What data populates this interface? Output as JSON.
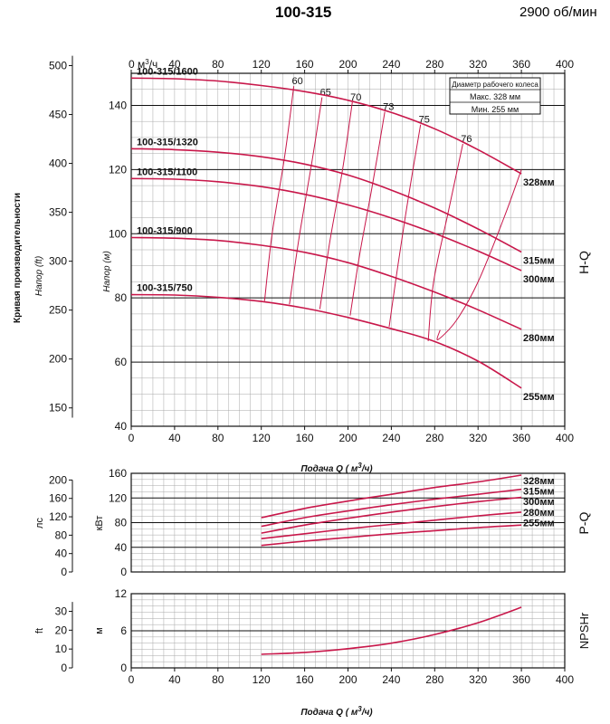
{
  "header": {
    "model": "100-315",
    "speed": "2900 об/мин"
  },
  "colors": {
    "curve": "#c8174a",
    "grid": "#a8a8a8",
    "axis": "#111111"
  },
  "chart_data": [
    {
      "id": "hq",
      "type": "line",
      "tag": "H-Q",
      "x_bottom_ticks": [
        0,
        40,
        80,
        120,
        160,
        200,
        240,
        280,
        320,
        360,
        400
      ],
      "x_top_ticks": [
        "0 м³/ч",
        "40",
        "80",
        "120",
        "160",
        "200",
        "240",
        "280",
        "320",
        "360",
        "400"
      ],
      "xlim": [
        0,
        400
      ],
      "ylim": [
        40,
        150
      ],
      "y_m_ticks": [
        40,
        60,
        80,
        100,
        120,
        140
      ],
      "y_ft_ticks": [
        150,
        200,
        250,
        300,
        350,
        400,
        450,
        500
      ],
      "ylabel_m": "Напор (м)",
      "ylabel_ft": "Напор (ft)",
      "side_label": "Кривая производительности",
      "xlabel": "Подача Q ( м³/ч)",
      "legend": {
        "title": "Диаметр рабочего колеса",
        "max": "Макс. 328 мм",
        "min": "Мин.  255 мм"
      },
      "series": [
        {
          "name": "328мм",
          "model": "100-315/1600",
          "x": [
            0,
            40,
            80,
            120,
            160,
            200,
            240,
            280,
            320,
            360
          ],
          "y": [
            148.5,
            148.3,
            147.6,
            146.2,
            144.3,
            141.6,
            137.8,
            132.7,
            126.2,
            118.7
          ]
        },
        {
          "name": "315мм",
          "model": "100-315/1320",
          "x": [
            0,
            40,
            80,
            120,
            160,
            200,
            240,
            280,
            320,
            360
          ],
          "y": [
            126.5,
            126.2,
            125.4,
            124.0,
            121.7,
            118.3,
            113.6,
            108.0,
            101.5,
            94.3
          ]
        },
        {
          "name": "300мм",
          "model": "100-315/1100",
          "x": [
            0,
            40,
            80,
            120,
            160,
            200,
            240,
            280,
            320,
            360
          ],
          "y": [
            117.2,
            117.0,
            116.2,
            114.7,
            112.3,
            109.0,
            104.9,
            100.1,
            94.6,
            88.5
          ]
        },
        {
          "name": "280мм",
          "model": "100-315/900",
          "x": [
            0,
            40,
            80,
            120,
            160,
            200,
            240,
            280,
            320,
            360
          ],
          "y": [
            98.8,
            98.6,
            97.9,
            96.4,
            94.2,
            91.0,
            86.7,
            81.8,
            76.3,
            70.2
          ]
        },
        {
          "name": "255мм",
          "model": "100-315/750",
          "x": [
            0,
            40,
            80,
            120,
            160,
            200,
            240,
            280,
            320,
            360
          ],
          "y": [
            81.0,
            80.9,
            80.2,
            78.9,
            76.8,
            73.9,
            70.4,
            66.4,
            60.3,
            51.9
          ]
        }
      ],
      "efficiency": [
        {
          "label": "60",
          "x": [
            123,
            130,
            142,
            150
          ],
          "y": [
            79,
            100,
            125,
            146
          ]
        },
        {
          "label": "65",
          "x": [
            146,
            155,
            167,
            176
          ],
          "y": [
            78,
            99,
            123,
            142.5
          ]
        },
        {
          "label": "70",
          "x": [
            174,
            183,
            195,
            204
          ],
          "y": [
            76.5,
            97,
            120,
            141
          ]
        },
        {
          "label": "73",
          "x": [
            202,
            211,
            223,
            234
          ],
          "y": [
            74.5,
            94,
            116,
            138
          ]
        },
        {
          "label": "75",
          "x": [
            238,
            246,
            256,
            267
          ],
          "y": [
            71,
            90,
            112,
            134
          ]
        },
        {
          "label": "76",
          "x": [
            274,
            279,
            292,
            306
          ],
          "y": [
            66.5,
            85,
            106,
            128
          ]
        }
      ],
      "efficiency_envelope": {
        "x": [
          285,
          283,
          300,
          320,
          344,
          360
        ],
        "y": [
          70,
          67,
          73,
          85,
          105,
          120
        ]
      }
    },
    {
      "id": "pq",
      "type": "line",
      "tag": "P-Q",
      "xlim": [
        0,
        400
      ],
      "ylim": [
        0,
        160
      ],
      "y_kw_ticks": [
        0,
        40,
        80,
        120,
        160
      ],
      "y_hp_ticks": [
        0,
        40,
        80,
        120,
        160,
        200
      ],
      "ylabel_kw": "кВт",
      "ylabel_hp": "лс",
      "series": [
        {
          "name": "328мм",
          "x": [
            120,
            160,
            200,
            240,
            280,
            320,
            360
          ],
          "y": [
            88,
            103,
            115,
            126,
            137,
            146,
            157
          ]
        },
        {
          "name": "315мм",
          "x": [
            120,
            160,
            200,
            240,
            280,
            320,
            360
          ],
          "y": [
            74,
            88,
            99,
            109,
            118,
            126,
            134
          ]
        },
        {
          "name": "300мм",
          "x": [
            120,
            160,
            200,
            240,
            280,
            320,
            360
          ],
          "y": [
            63,
            76,
            87,
            97,
            106,
            114,
            121
          ]
        },
        {
          "name": "280мм",
          "x": [
            120,
            160,
            200,
            240,
            280,
            320,
            360
          ],
          "y": [
            54,
            62,
            70,
            77,
            84,
            91,
            97
          ]
        },
        {
          "name": "255мм",
          "x": [
            120,
            160,
            200,
            240,
            280,
            320,
            360
          ],
          "y": [
            43,
            50,
            56,
            62,
            67,
            72,
            76
          ]
        }
      ]
    },
    {
      "id": "npsh",
      "type": "line",
      "tag": "NPSHr",
      "xlim": [
        0,
        400
      ],
      "ylim": [
        0,
        12
      ],
      "y_m_ticks": [
        0,
        6,
        12
      ],
      "y_ft_ticks": [
        0,
        10,
        20,
        30
      ],
      "ylabel_m": "м",
      "ylabel_ft": "ft",
      "xlabel": "Подача Q ( м³/ч)",
      "x_ticks": [
        0,
        40,
        80,
        120,
        160,
        200,
        240,
        280,
        320,
        360,
        400
      ],
      "series": [
        {
          "name": "NPSHr",
          "x": [
            120,
            160,
            200,
            240,
            280,
            320,
            360
          ],
          "y": [
            2.2,
            2.5,
            3.1,
            4.0,
            5.4,
            7.3,
            9.8
          ]
        }
      ]
    }
  ]
}
